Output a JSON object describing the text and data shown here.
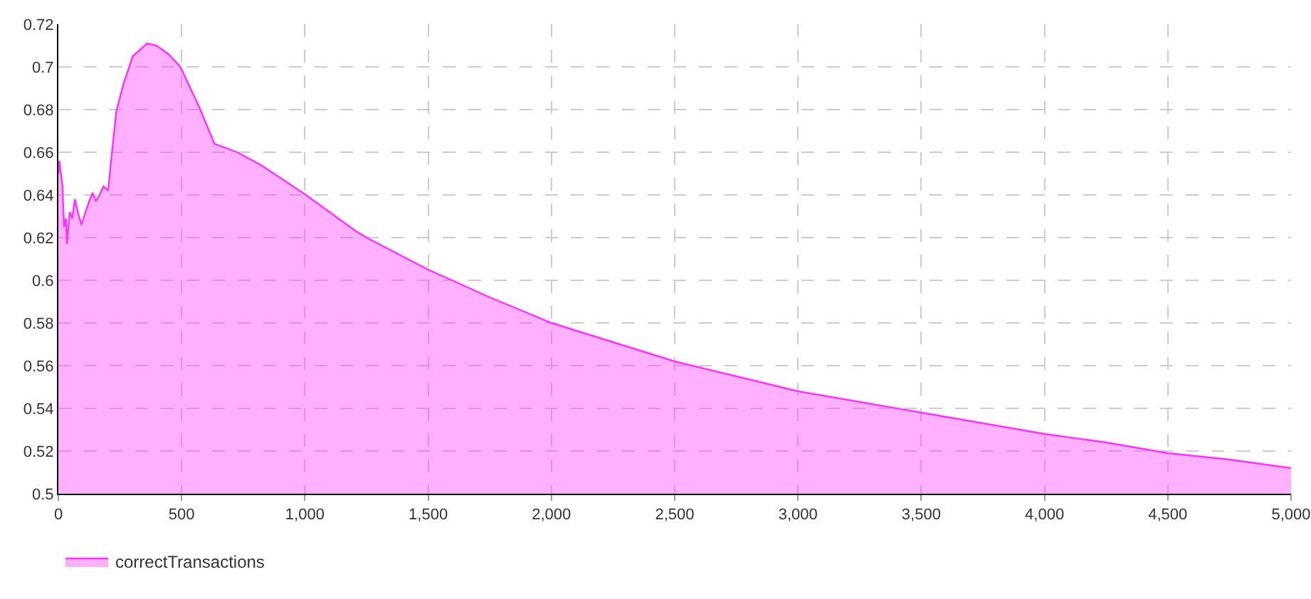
{
  "chart_data": {
    "type": "area",
    "x": [
      0,
      4,
      17,
      23,
      31,
      35,
      46,
      56,
      67,
      81,
      94,
      110,
      125,
      139,
      152,
      167,
      183,
      202,
      212,
      235,
      264,
      302,
      360,
      398,
      446,
      495,
      572,
      633,
      725,
      822,
      1004,
      1207,
      1250,
      1500,
      1750,
      2000,
      2250,
      2500,
      2750,
      3000,
      3250,
      3500,
      3750,
      4000,
      4250,
      4500,
      4750,
      5000
    ],
    "series": [
      {
        "name": "correctTransactions",
        "color": "#ff33ff",
        "values": [
          0.65,
          0.656,
          0.644,
          0.625,
          0.629,
          0.617,
          0.632,
          0.629,
          0.638,
          0.631,
          0.626,
          0.632,
          0.637,
          0.641,
          0.637,
          0.64,
          0.644,
          0.642,
          0.654,
          0.679,
          0.692,
          0.705,
          0.711,
          0.71,
          0.706,
          0.7,
          0.681,
          0.664,
          0.66,
          0.654,
          0.64,
          0.623,
          0.62,
          0.605,
          0.592,
          0.58,
          0.571,
          0.562,
          0.555,
          0.548,
          0.543,
          0.538,
          0.533,
          0.528,
          0.524,
          0.519,
          0.516,
          0.512
        ]
      }
    ],
    "xlim": [
      0,
      5000
    ],
    "xticks": [
      {
        "value": 0,
        "label": "0"
      },
      {
        "value": 500,
        "label": "500"
      },
      {
        "value": 1000,
        "label": "1,000"
      },
      {
        "value": 1500,
        "label": "1,500"
      },
      {
        "value": 2000,
        "label": "2,000"
      },
      {
        "value": 2500,
        "label": "2,500"
      },
      {
        "value": 3000,
        "label": "3,000"
      },
      {
        "value": 3500,
        "label": "3,500"
      },
      {
        "value": 4000,
        "label": "4,000"
      },
      {
        "value": 4500,
        "label": "4,500"
      },
      {
        "value": 5000,
        "label": "5,000"
      }
    ],
    "ylim": [
      0.5,
      0.72
    ],
    "yticks": [
      0.5,
      0.52,
      0.54,
      0.56,
      0.58,
      0.6,
      0.62,
      0.64,
      0.66,
      0.68,
      0.7,
      0.72
    ],
    "grid": true,
    "legend": "bottom left",
    "line_style": "solid"
  }
}
